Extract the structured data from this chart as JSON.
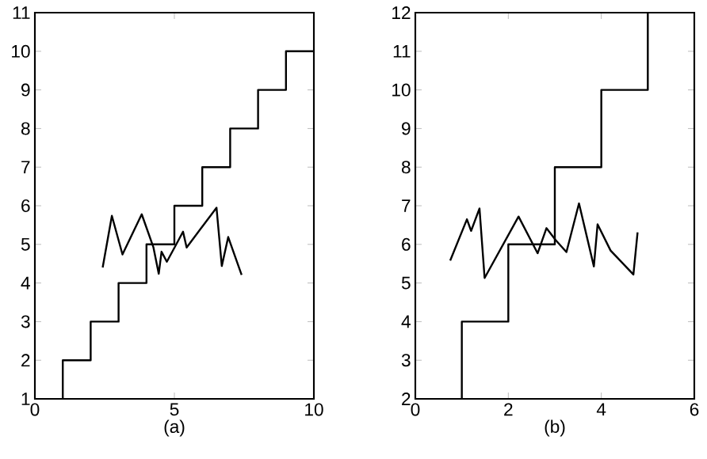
{
  "chart_data": [
    {
      "type": "line",
      "xlabel": "(a)",
      "xlim": [
        0,
        10
      ],
      "ylim": [
        1,
        11
      ],
      "xticks": [
        0,
        5,
        10
      ],
      "yticks": [
        1,
        2,
        3,
        4,
        5,
        6,
        7,
        8,
        9,
        10,
        11
      ],
      "series": [
        {
          "type": "step",
          "color": "#000000",
          "x": [
            1,
            1,
            2,
            3,
            4,
            5,
            6,
            7,
            8,
            9,
            10
          ],
          "values": [
            1,
            2,
            3,
            4,
            5,
            6,
            7,
            8,
            9,
            10,
            10
          ]
        },
        {
          "type": "line",
          "color": "#000000",
          "x": [
            2.43,
            2.76,
            3.14,
            3.83,
            4.25,
            4.44,
            4.54,
            4.73,
            5.06,
            5.31,
            5.44,
            6.51,
            6.7,
            6.93,
            7.41
          ],
          "values": [
            4.4,
            5.74,
            4.74,
            5.78,
            4.92,
            4.24,
            4.81,
            4.55,
            4.99,
            5.33,
            4.92,
            5.95,
            4.44,
            5.19,
            4.21
          ]
        }
      ]
    },
    {
      "type": "line",
      "xlabel": "(b)",
      "xlim": [
        0,
        6
      ],
      "ylim": [
        2,
        12
      ],
      "xticks": [
        0,
        2,
        4,
        6
      ],
      "yticks": [
        2,
        3,
        4,
        5,
        6,
        7,
        8,
        9,
        10,
        11,
        12
      ],
      "series": [
        {
          "type": "step",
          "color": "#000000",
          "x": [
            1,
            1,
            2,
            3,
            4,
            5
          ],
          "values": [
            2,
            4,
            6,
            8,
            10,
            12
          ]
        },
        {
          "type": "line",
          "color": "#000000",
          "x": [
            0.75,
            1.11,
            1.2,
            1.38,
            1.49,
            2.22,
            2.63,
            2.82,
            3.02,
            3.25,
            3.52,
            3.84,
            3.92,
            4.2,
            4.69,
            4.78
          ],
          "values": [
            5.58,
            6.65,
            6.35,
            6.93,
            5.13,
            6.72,
            5.77,
            6.42,
            6.11,
            5.8,
            7.06,
            5.43,
            6.52,
            5.84,
            5.22,
            6.31
          ]
        }
      ]
    }
  ]
}
